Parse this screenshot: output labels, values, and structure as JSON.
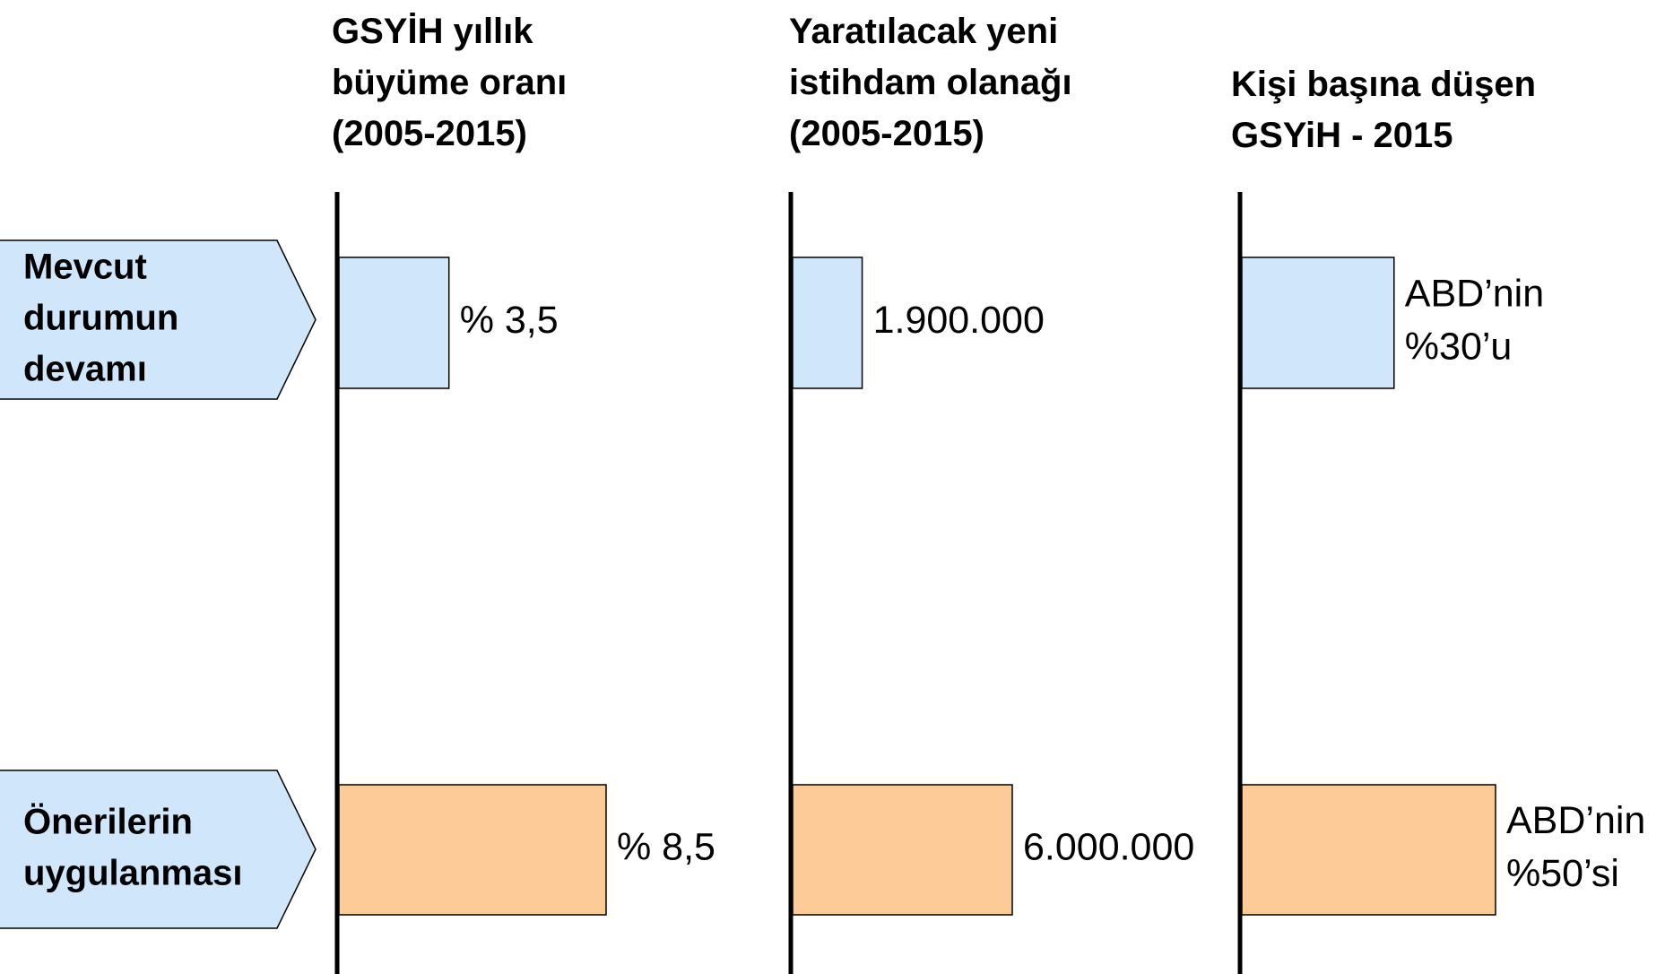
{
  "chart_data": [
    {
      "type": "bar",
      "title": "GSYİH yıllık\nbüyüme oranı\n(2005-2015)",
      "categories": [
        "Mevcut durumun devamı",
        "Önerilerin uygulanması"
      ],
      "values": [
        3.5,
        8.5
      ],
      "value_labels": [
        "% 3,5",
        "% 8,5"
      ],
      "colors": [
        "#cfe6fb",
        "#fccb98"
      ]
    },
    {
      "type": "bar",
      "title": "Yaratılacak yeni\nistihdam olanağı\n(2005-2015)",
      "values": [
        1900000,
        6000000
      ],
      "value_labels": [
        "1.900.000",
        "6.000.000"
      ],
      "colors": [
        "#cfe6fb",
        "#fccb98"
      ]
    },
    {
      "type": "bar",
      "title": "Kişi başına düşen\nGSYiH - 2015",
      "values": [
        30,
        50
      ],
      "value_labels": [
        "ABD’nin\n%30’u",
        "ABD’nin\n%50’si"
      ],
      "colors": [
        "#cfe6fb",
        "#fccb98"
      ]
    }
  ]
}
